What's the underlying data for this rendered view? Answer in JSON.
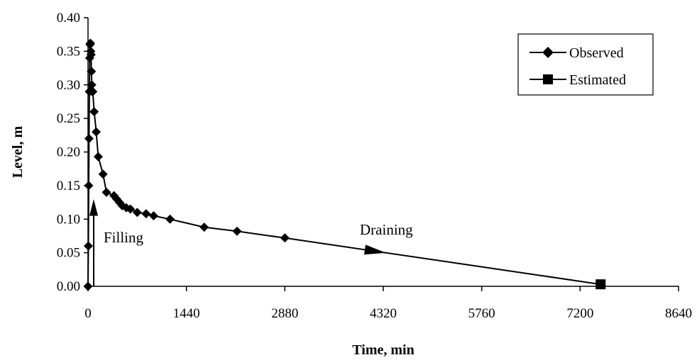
{
  "chart_data": {
    "type": "line",
    "title": "",
    "xlabel": "Time, min",
    "ylabel": "Level, m",
    "xlim": [
      0,
      8640
    ],
    "ylim": [
      0,
      0.4
    ],
    "x_ticks": [
      0,
      1440,
      2880,
      4320,
      5760,
      7200,
      8640
    ],
    "y_ticks": [
      0.0,
      0.05,
      0.1,
      0.15,
      0.2,
      0.25,
      0.3,
      0.35,
      0.4
    ],
    "x_tick_labels": [
      "0",
      "1440",
      "2880",
      "4320",
      "5760",
      "7200",
      "8640"
    ],
    "y_tick_labels": [
      "0.00",
      "0.05",
      "0.10",
      "0.15",
      "0.20",
      "0.25",
      "0.30",
      "0.35",
      "0.40"
    ],
    "grid": false,
    "legend_position": "top-right",
    "series": [
      {
        "name": "Observed",
        "marker": "diamond",
        "color": "#000000",
        "x": [
          0,
          5,
          10,
          15,
          20,
          25,
          30,
          35,
          40,
          45,
          50,
          55,
          60,
          70,
          90,
          120,
          150,
          220,
          270,
          380,
          420,
          460,
          500,
          560,
          620,
          720,
          850,
          960,
          1200,
          1700,
          2180,
          2880
        ],
        "y": [
          0.0,
          0.06,
          0.15,
          0.22,
          0.29,
          0.34,
          0.36,
          0.362,
          0.35,
          0.345,
          0.32,
          0.3,
          0.29,
          0.29,
          0.26,
          0.23,
          0.193,
          0.167,
          0.14,
          0.135,
          0.13,
          0.125,
          0.12,
          0.117,
          0.115,
          0.11,
          0.108,
          0.105,
          0.1,
          0.088,
          0.082,
          0.072
        ]
      },
      {
        "name": "Estimated",
        "marker": "square",
        "color": "#000000",
        "x": [
          2880,
          7500
        ],
        "y": [
          0.072,
          0.003
        ]
      }
    ],
    "annotations": [
      {
        "text": "Filling",
        "x": 100,
        "y": 0.07
      },
      {
        "text": "Draining",
        "x": 3900,
        "y": 0.085
      }
    ]
  }
}
